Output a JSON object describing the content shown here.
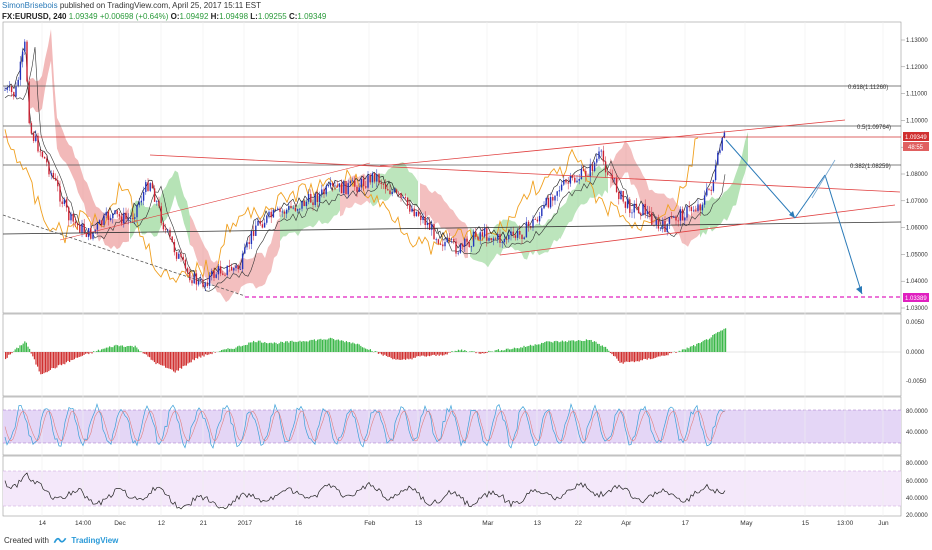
{
  "header": {
    "author": "SimonBrisebois",
    "published_text": "published on TradingView.com, April 25, 2017 15:11 EST"
  },
  "symbol_line": {
    "symbol": "FX:EURUSD, 240",
    "last": "1.09349",
    "change": "+0.00698 (+0.64%)",
    "open_label": "O:",
    "open": "1.09492",
    "high_label": "H:",
    "high": "1.09498",
    "low_label": "L:",
    "low": "1.09255",
    "close_label": "C:",
    "close": "1.09349"
  },
  "price_axis": {
    "ticks": [
      "1.13000",
      "1.12000",
      "1.11000",
      "1.10000",
      "1.09000",
      "1.08000",
      "1.07000",
      "1.06000",
      "1.05000",
      "1.04000",
      "1.03000"
    ],
    "current_price": "1.09349",
    "countdown": "48:55",
    "support_label": "1.03389"
  },
  "fib_labels": {
    "f618": "0.618(1.11260)",
    "f5": "0.5(1.09764)",
    "f382": "0.382(1.08259)"
  },
  "oscillator1_axis": [
    "0.0050",
    "0.0000",
    "-0.0050"
  ],
  "oscillator2_axis": [
    "80.0000",
    "40.0000"
  ],
  "oscillator3_axis": [
    "80.0000",
    "60.0000",
    "40.0000",
    "20.0000"
  ],
  "time_axis": [
    "14",
    "14:00",
    "Dec",
    "12",
    "21",
    "2017",
    "16",
    "Feb",
    "13",
    "Mar",
    "13",
    "22",
    "Apr",
    "17",
    "May",
    "15",
    "13:00",
    "Jun"
  ],
  "footer": {
    "created_with": "Created with",
    "brand": "TradingView"
  },
  "colors": {
    "up": "#2a8a3a",
    "down": "#d03030",
    "accent_blue": "#2a7ab8",
    "support_magenta": "#e020c0",
    "cloud_green": "#7acc7a",
    "cloud_red": "#e88080",
    "stoch_band": "#d8c8f0"
  }
}
